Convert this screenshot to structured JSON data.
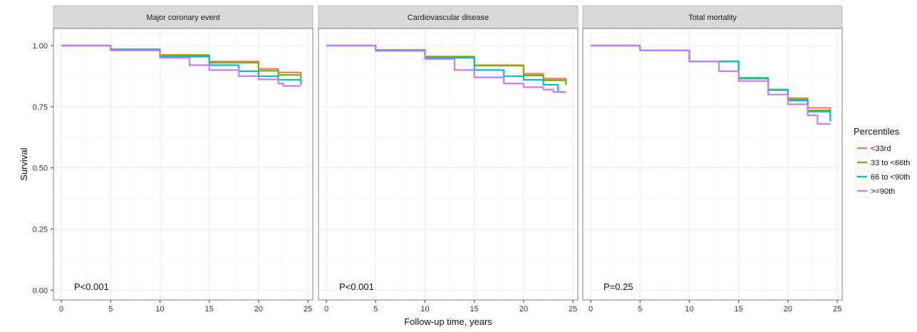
{
  "chart_data": {
    "type": "line",
    "subtype": "kaplan-meier-step",
    "ylabel": "Survival",
    "xlabel": "Follow-up time, years",
    "xlim": [
      -0.8,
      25.5
    ],
    "ylim": [
      -0.04,
      1.07
    ],
    "x_ticks": [
      0,
      5,
      10,
      15,
      20,
      25
    ],
    "y_ticks": [
      0.0,
      0.25,
      0.5,
      0.75,
      1.0
    ],
    "y_tick_labels": [
      "0.00",
      "0.25",
      "0.50",
      "0.75",
      "1.00"
    ],
    "grid": true,
    "legend": {
      "title": "Percentiles",
      "placement": "right",
      "entries": [
        {
          "name": "<33rd",
          "color": "#F8766D"
        },
        {
          "name": "33 to <66th",
          "color": "#7CAE00"
        },
        {
          "name": "66 to <90th",
          "color": "#00BFC4"
        },
        {
          "name": ">=90th",
          "color": "#C77CFF"
        }
      ]
    },
    "panels": [
      {
        "title": "Major coronary event",
        "annotation": "P<0.001",
        "series": [
          {
            "name": "<33rd",
            "x": [
              0,
              5,
              10,
              15,
              20,
              22,
              24.3
            ],
            "y": [
              1.0,
              0.985,
              0.962,
              0.935,
              0.905,
              0.89,
              0.876
            ]
          },
          {
            "name": "33 to <66th",
            "x": [
              0,
              5,
              10,
              15,
              20,
              22,
              24.3
            ],
            "y": [
              1.0,
              0.985,
              0.96,
              0.93,
              0.897,
              0.88,
              0.861
            ]
          },
          {
            "name": "66 to <90th",
            "x": [
              0,
              5,
              10,
              15,
              18,
              20,
              22,
              24.3
            ],
            "y": [
              1.0,
              0.983,
              0.955,
              0.92,
              0.895,
              0.875,
              0.86,
              0.84
            ]
          },
          {
            "name": ">=90th",
            "x": [
              0,
              5,
              10,
              13,
              15,
              18,
              20,
              22,
              22.5,
              24.3
            ],
            "y": [
              1.0,
              0.98,
              0.95,
              0.92,
              0.9,
              0.875,
              0.862,
              0.845,
              0.835,
              0.835
            ]
          }
        ]
      },
      {
        "title": "Cardiovascular disease",
        "annotation": "P<0.001",
        "series": [
          {
            "name": "<33rd",
            "x": [
              0,
              5,
              10,
              15,
              20,
              22,
              24.3
            ],
            "y": [
              1.0,
              0.982,
              0.955,
              0.92,
              0.885,
              0.865,
              0.845
            ]
          },
          {
            "name": "33 to <66th",
            "x": [
              0,
              5,
              10,
              15,
              20,
              22,
              24.3
            ],
            "y": [
              1.0,
              0.982,
              0.955,
              0.918,
              0.878,
              0.858,
              0.838
            ]
          },
          {
            "name": "66 to <90th",
            "x": [
              0,
              5,
              10,
              15,
              18,
              20,
              22,
              23.5,
              24.3
            ],
            "y": [
              1.0,
              0.98,
              0.95,
              0.9,
              0.875,
              0.86,
              0.84,
              0.81,
              0.81
            ]
          },
          {
            "name": ">=90th",
            "x": [
              0,
              5,
              10,
              13,
              15,
              18,
              20,
              22,
              23,
              24.3
            ],
            "y": [
              1.0,
              0.978,
              0.945,
              0.9,
              0.87,
              0.845,
              0.83,
              0.82,
              0.81,
              0.81
            ]
          }
        ]
      },
      {
        "title": "Total mortality",
        "annotation": "P=0.25",
        "series": [
          {
            "name": "<33rd",
            "x": [
              0,
              5,
              10,
              15,
              18,
              20,
              22,
              24.3
            ],
            "y": [
              1.0,
              0.98,
              0.935,
              0.865,
              0.82,
              0.785,
              0.745,
              0.715
            ]
          },
          {
            "name": "33 to <66th",
            "x": [
              0,
              5,
              10,
              15,
              18,
              20,
              22,
              24.3
            ],
            "y": [
              1.0,
              0.98,
              0.935,
              0.865,
              0.818,
              0.78,
              0.735,
              0.705
            ]
          },
          {
            "name": "66 to <90th",
            "x": [
              0,
              5,
              10,
              15,
              18,
              20,
              22,
              24.3
            ],
            "y": [
              1.0,
              0.98,
              0.935,
              0.868,
              0.82,
              0.775,
              0.73,
              0.69
            ]
          },
          {
            "name": ">=90th",
            "x": [
              0,
              5,
              10,
              13,
              15,
              18,
              20,
              22,
              23,
              24.3
            ],
            "y": [
              1.0,
              0.98,
              0.935,
              0.895,
              0.855,
              0.8,
              0.76,
              0.715,
              0.68,
              0.68
            ]
          }
        ]
      }
    ]
  }
}
